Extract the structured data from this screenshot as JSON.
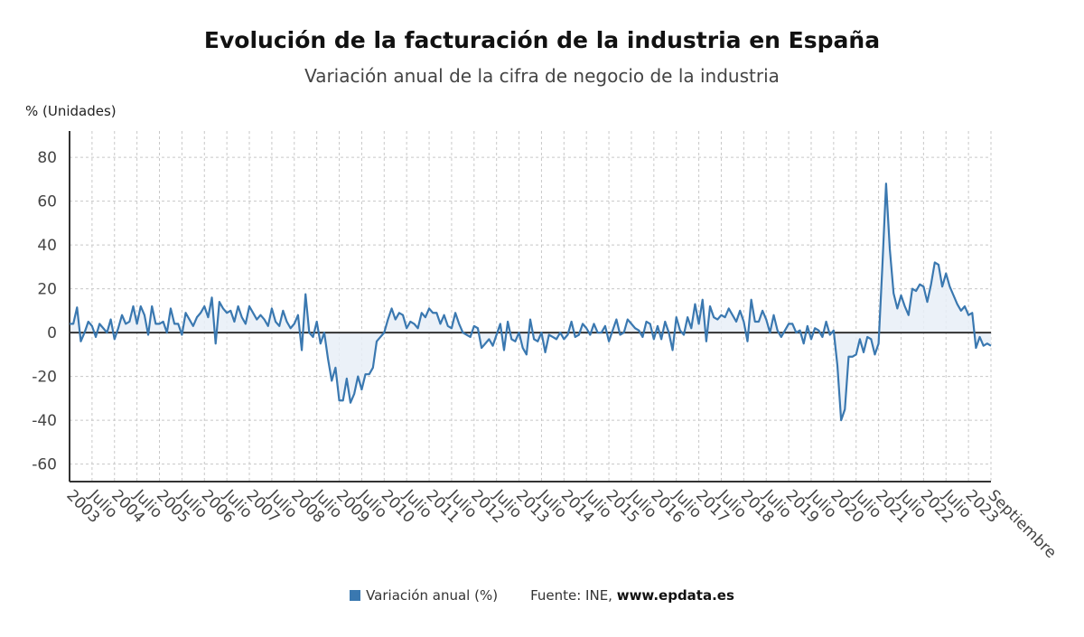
{
  "title": "Evolución de la facturación de la industria en España",
  "subtitle": "Variación anual de la cifra de negocio de la industria",
  "y_axis_label": "% (Unidades)",
  "legend": {
    "series_label": "Variación anual (%)",
    "source_prefix": "Fuente: INE,",
    "source_site": "www.epdata.es"
  },
  "colors": {
    "line": "#3a78b0",
    "fill": "#e8eef7",
    "grid": "#c8c8c8",
    "axis": "#333333"
  },
  "chart_data": {
    "type": "line",
    "xlabel": "",
    "ylabel": "% (Unidades)",
    "ylim": [
      -68,
      92
    ],
    "yticks": [
      80,
      60,
      40,
      20,
      0,
      -20,
      -40,
      -60
    ],
    "x_range": [
      "2003-01",
      "2023-09"
    ],
    "x_tick_labels": [
      "2003",
      "Julio",
      "2004",
      "Julio",
      "2005",
      "Julio",
      "2006",
      "Julio",
      "2007",
      "Julio",
      "2008",
      "Julio",
      "2009",
      "Julio",
      "2010",
      "Julio",
      "2011",
      "Julio",
      "2012",
      "Julio",
      "2013",
      "Julio",
      "2014",
      "Julio",
      "2015",
      "Julio",
      "2016",
      "Julio",
      "2017",
      "Julio",
      "2018",
      "Julio",
      "2019",
      "Julio",
      "2020",
      "Julio",
      "2021",
      "Julio",
      "2022",
      "Julio",
      "2023",
      "Septiembre"
    ],
    "grid": true,
    "legend_position": "bottom-center",
    "series": [
      {
        "name": "Variación anual (%)",
        "frequency": "monthly",
        "start": "2003-01",
        "values": [
          4,
          4,
          11.5,
          -4,
          0,
          5,
          3,
          -2,
          4,
          2,
          0,
          6,
          -3,
          2,
          8,
          4,
          5,
          12,
          4,
          12,
          8,
          -1,
          12,
          4,
          4,
          5,
          0,
          11,
          4,
          4,
          -1,
          9,
          6,
          3,
          7,
          9,
          12,
          7,
          16,
          -5,
          14,
          11,
          9,
          10,
          5,
          12,
          7,
          4,
          12,
          9,
          6,
          8,
          6,
          3,
          11,
          5,
          3,
          10,
          5,
          2,
          4,
          8,
          -8,
          17.5,
          0,
          -2,
          5,
          -5,
          0,
          -12,
          -22,
          -16,
          -31,
          -31,
          -21,
          -32,
          -28,
          -20,
          -26,
          -19,
          -19,
          -16,
          -4,
          -2,
          0,
          6,
          11,
          6,
          9,
          8,
          2,
          5,
          4,
          2,
          9,
          7,
          11,
          9,
          9,
          4,
          8,
          3,
          2,
          9,
          4,
          0,
          -1,
          -2,
          3,
          2,
          -7,
          -5,
          -3,
          -6,
          -1,
          4,
          -8,
          5,
          -3,
          -4,
          0,
          -7,
          -10,
          6,
          -3,
          -4,
          0,
          -9,
          -1,
          -2,
          -3,
          0,
          -3,
          -1,
          5,
          -2,
          -1,
          4,
          2,
          -1,
          4,
          0,
          0,
          3,
          -4,
          1,
          6,
          -1,
          0,
          6,
          4,
          2,
          1,
          -2,
          5,
          4,
          -3,
          3,
          -3,
          5,
          0,
          -8,
          7,
          1,
          -1,
          7,
          2,
          13,
          4,
          15,
          -4,
          12,
          7,
          6,
          8,
          7,
          11,
          8,
          5,
          10,
          5,
          -4,
          15,
          5,
          5,
          10,
          6,
          0,
          8,
          1,
          -2,
          1,
          4,
          4,
          0,
          1,
          -5,
          3,
          -3,
          2,
          1,
          -2,
          5,
          -1,
          1,
          -15,
          -40,
          -35,
          -11,
          -11,
          -10,
          -3,
          -9,
          -2,
          -3,
          -10,
          -5,
          30,
          68,
          38,
          18,
          11,
          17,
          12,
          8,
          20,
          19,
          22,
          21,
          14,
          22,
          32,
          31,
          21,
          27,
          21,
          17,
          13,
          10,
          12,
          8,
          9,
          -7,
          -2,
          -6,
          -5,
          -6
        ]
      }
    ]
  }
}
